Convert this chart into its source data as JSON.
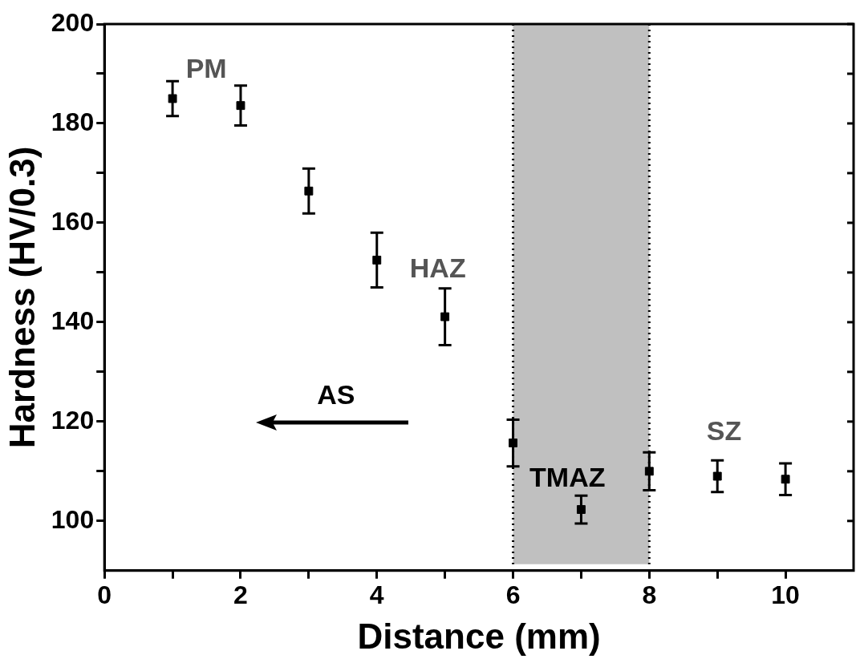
{
  "chart_data": {
    "type": "scatter",
    "xlabel": "Distance (mm)",
    "ylabel": "Hardness (HV/0.3)",
    "x": [
      1,
      2,
      3,
      4,
      5,
      6,
      7,
      8,
      9,
      10
    ],
    "series": [
      {
        "color": "#000000",
        "values": [
          185,
          183.6,
          166.4,
          152.5,
          141.1,
          115.7,
          102.3,
          110,
          109,
          108.4
        ],
        "errors": [
          3.5,
          4,
          4.5,
          5.5,
          5.7,
          4.7,
          2.8,
          3.8,
          3.2,
          3.2
        ]
      }
    ],
    "xlim": [
      0,
      11
    ],
    "ylim": [
      90,
      200
    ],
    "xticks": [
      0,
      {
        "value": 1,
        "label": null
      },
      2,
      {
        "value": 3,
        "label": null
      },
      4,
      {
        "value": 5,
        "label": null
      },
      6,
      {
        "value": 7,
        "label": null
      },
      8,
      {
        "value": 9,
        "label": null
      },
      10
    ],
    "yticks": [
      100,
      {
        "value": 110,
        "label": null
      },
      120,
      {
        "value": 130,
        "label": null
      },
      140,
      {
        "value": 150,
        "label": null
      },
      160,
      {
        "value": 170,
        "label": null
      },
      180,
      {
        "value": 190,
        "label": null
      },
      200
    ],
    "bands": [
      {
        "axis": "x",
        "from": 6,
        "to": 8,
        "color": "#c0c0c0"
      }
    ],
    "ref_lines": [
      {
        "axis": "x",
        "value": 6,
        "line_style": "dotted",
        "color": "#000000"
      },
      {
        "axis": "x",
        "value": 8,
        "line_style": "dotted",
        "color": "#000000"
      }
    ],
    "annotations": [
      "PM",
      "HAZ",
      "TMAZ",
      "SZ",
      "AS"
    ],
    "marker": "square",
    "grid": false,
    "legend": false
  }
}
